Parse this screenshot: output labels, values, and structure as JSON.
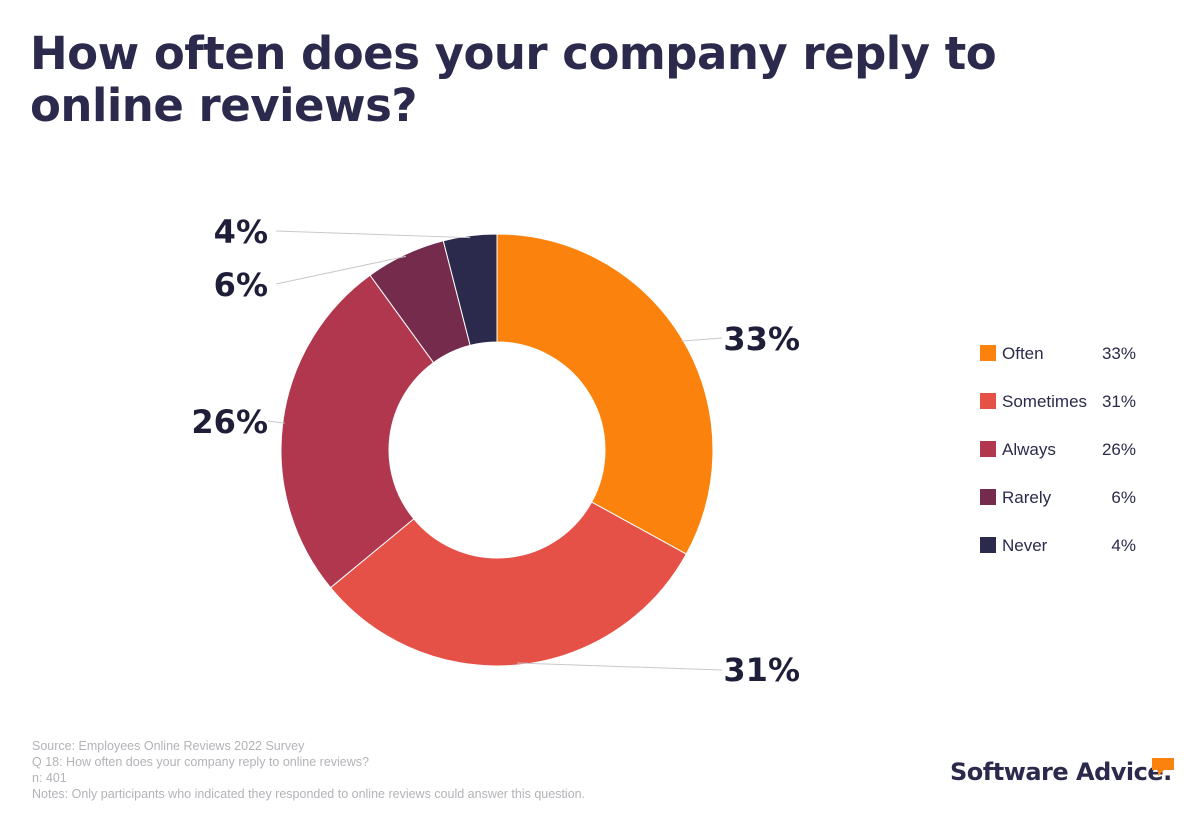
{
  "title": "How often does your company reply to online reviews?",
  "chart_data": {
    "type": "pie",
    "variant": "donut",
    "categories": [
      "Often",
      "Sometimes",
      "Always",
      "Rarely",
      "Never"
    ],
    "values": [
      33,
      31,
      26,
      6,
      4
    ],
    "labels": [
      "33%",
      "31%",
      "26%",
      "6%",
      "4%"
    ],
    "colors": [
      "#fb830d",
      "#e55047",
      "#b0374d",
      "#752b4c",
      "#2b2a4c"
    ],
    "legend_position": "right"
  },
  "legend": [
    {
      "label": "Often",
      "value": "33%"
    },
    {
      "label": "Sometimes",
      "value": "31%"
    },
    {
      "label": "Always",
      "value": "26%"
    },
    {
      "label": "Rarely",
      "value": "6%"
    },
    {
      "label": "Never",
      "value": "4%"
    }
  ],
  "footnotes": {
    "source": "Source: Employees Online Reviews 2022 Survey",
    "question": "Q 18: How often does your company reply to online reviews?",
    "n": "n: 401",
    "notes": "Notes: Only participants who indicated they responded to online reviews could answer this question."
  },
  "brand": {
    "name": "Software Advice.",
    "accent_color": "#fb830d"
  }
}
